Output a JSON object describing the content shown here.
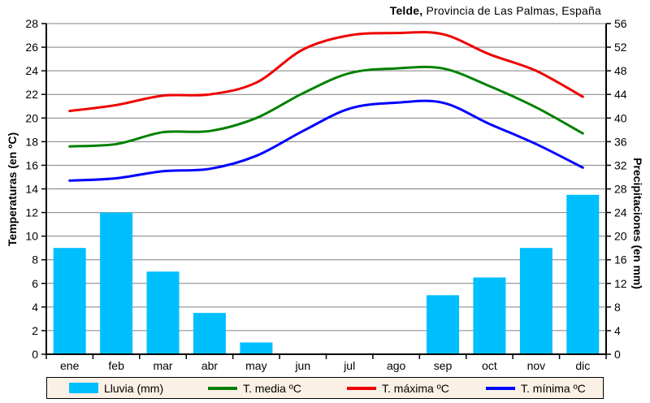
{
  "title": {
    "bold": "Telde,",
    "rest": " Provincia de Las Palmas, España"
  },
  "axes": {
    "left_label": "Temperaturas (en ºC)",
    "right_label": "Precipitaciones (en mm)",
    "left_ticks": [
      0,
      2,
      4,
      6,
      8,
      10,
      12,
      14,
      16,
      18,
      20,
      22,
      24,
      26,
      28
    ],
    "right_ticks": [
      0,
      4,
      8,
      12,
      16,
      20,
      24,
      28,
      32,
      36,
      40,
      44,
      48,
      52,
      56
    ],
    "left_range": [
      0,
      28
    ],
    "right_range": [
      0,
      56
    ]
  },
  "chart_data": {
    "type": "bar+line climograph",
    "categories": [
      "ene",
      "feb",
      "mar",
      "abr",
      "may",
      "jun",
      "jul",
      "ago",
      "sep",
      "oct",
      "nov",
      "dic"
    ],
    "series": [
      {
        "name": "Lluvia (mm)",
        "type": "bar",
        "axis": "right",
        "color": "#00bfff",
        "values": [
          18,
          24,
          14,
          7,
          2,
          0,
          0,
          0,
          10,
          13,
          18,
          27
        ]
      },
      {
        "name": "T. media ºC",
        "type": "line",
        "axis": "left",
        "color": "#008000",
        "values": [
          17.6,
          17.8,
          18.8,
          18.9,
          20.0,
          22.1,
          23.8,
          24.2,
          24.2,
          22.7,
          20.9,
          18.7
        ]
      },
      {
        "name": "T. máxima ºC",
        "type": "line",
        "axis": "left",
        "color": "#ee0000",
        "values": [
          20.6,
          21.1,
          21.9,
          22.0,
          23.0,
          25.8,
          27.0,
          27.2,
          27.1,
          25.4,
          24.0,
          21.8
        ]
      },
      {
        "name": "T. mínima ºC",
        "type": "line",
        "axis": "left",
        "color": "#0000ff",
        "values": [
          14.7,
          14.9,
          15.5,
          15.7,
          16.8,
          18.9,
          20.8,
          21.3,
          21.3,
          19.5,
          17.8,
          15.8
        ]
      }
    ],
    "title": "Telde, Provincia de Las Palmas, España",
    "xlabel": "",
    "ylabel_left": "Temperaturas (en ºC)",
    "ylabel_right": "Precipitaciones (en mm)",
    "grid": true,
    "legend_position": "bottom"
  },
  "legend": {
    "items": [
      {
        "label": "Lluvia (mm)",
        "swatch": "bar",
        "color": "#00bfff"
      },
      {
        "label": "T. media ºC",
        "swatch": "line",
        "color": "#008000"
      },
      {
        "label": "T. máxima ºC",
        "swatch": "line",
        "color": "#ee0000"
      },
      {
        "label": "T. mínima ºC",
        "swatch": "line",
        "color": "#0000ff"
      }
    ]
  },
  "style": {
    "grid_color": "#808080",
    "axis_color": "#000000",
    "legend_bg": "#faf0e6"
  }
}
